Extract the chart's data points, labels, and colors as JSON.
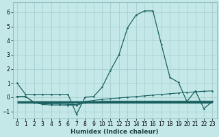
{
  "xlabel": "Humidex (Indice chaleur)",
  "ylabel": "",
  "background_color": "#c4e8e8",
  "grid_color": "#a8d0d0",
  "line_color": "#1a6060",
  "xlim": [
    -0.5,
    23.5
  ],
  "ylim": [
    -1.5,
    6.7
  ],
  "xticks": [
    0,
    1,
    2,
    3,
    4,
    5,
    6,
    7,
    8,
    9,
    10,
    11,
    12,
    13,
    14,
    15,
    16,
    17,
    18,
    19,
    20,
    21,
    22,
    23
  ],
  "yticks": [
    -1,
    0,
    1,
    2,
    3,
    4,
    5,
    6
  ],
  "line1_x": [
    0,
    1,
    2,
    3,
    4,
    5,
    6,
    7,
    8,
    9,
    10,
    11,
    12,
    13,
    14,
    15,
    16,
    17,
    18,
    19,
    20,
    21,
    22,
    23
  ],
  "line1_y": [
    1.0,
    0.2,
    0.2,
    0.2,
    0.2,
    0.2,
    0.2,
    -1.2,
    0.0,
    0.05,
    0.7,
    1.9,
    3.0,
    4.9,
    5.8,
    6.1,
    6.1,
    3.7,
    1.4,
    1.05,
    -0.3,
    0.45,
    -0.8,
    -0.3
  ],
  "line2_x": [
    0,
    1,
    2,
    3,
    4,
    5,
    6,
    7,
    8,
    9,
    10,
    11,
    12,
    13,
    14,
    15,
    16,
    17,
    18,
    19,
    20,
    21,
    22,
    23
  ],
  "line2_y": [
    0.05,
    0.05,
    -0.35,
    -0.45,
    -0.48,
    -0.48,
    -0.5,
    -0.52,
    -0.3,
    -0.22,
    -0.15,
    -0.1,
    -0.05,
    0.0,
    0.05,
    0.1,
    0.15,
    0.2,
    0.25,
    0.3,
    0.35,
    0.38,
    0.42,
    0.45
  ],
  "line3_x": [
    0,
    1,
    2,
    3,
    4,
    5,
    6,
    7,
    8,
    9,
    10,
    11,
    12,
    13,
    14,
    15,
    16,
    17,
    18,
    19,
    20,
    21,
    22,
    23
  ],
  "line3_y": [
    0.05,
    0.05,
    -0.38,
    -0.5,
    -0.55,
    -0.55,
    -0.57,
    -0.57,
    -0.38,
    -0.33,
    -0.28,
    -0.28,
    -0.28,
    -0.28,
    -0.28,
    -0.28,
    -0.28,
    -0.28,
    -0.28,
    -0.28,
    -0.28,
    -0.28,
    -0.28,
    -0.28
  ],
  "line4_x": [
    0,
    23
  ],
  "line4_y": [
    -0.32,
    -0.32
  ]
}
